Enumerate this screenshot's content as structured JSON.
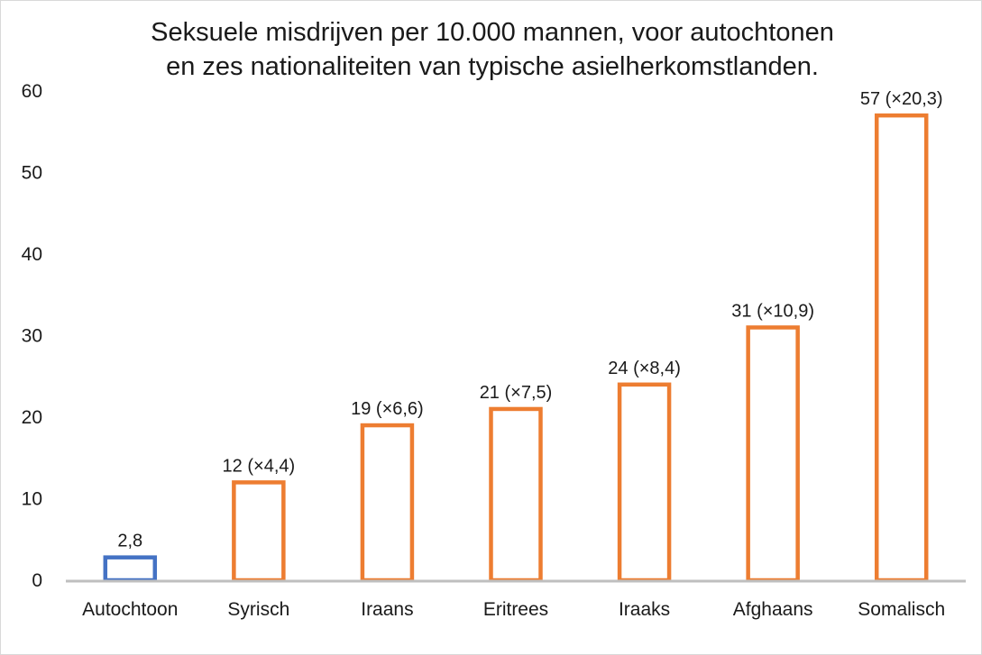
{
  "chart_data": {
    "type": "bar",
    "title": "Seksuele misdrijven per 10.000 mannen, voor autochtonen en zes nationaliteiten van typische asielherkomstlanden.",
    "categories": [
      "Autochtoon",
      "Syrisch",
      "Iraans",
      "Eritrees",
      "Iraaks",
      "Afghaans",
      "Somalisch"
    ],
    "values": [
      2.8,
      12,
      19,
      21,
      24,
      31,
      57
    ],
    "data_labels": [
      "2,8",
      "12 (×4,4)",
      "19 (×6,6)",
      "21 (×7,5)",
      "24 (×8,4)",
      "31 (×10,9)",
      "57 (×20,3)"
    ],
    "bar_colors": [
      "#4472c4",
      "#ed7d31",
      "#ed7d31",
      "#ed7d31",
      "#ed7d31",
      "#ed7d31",
      "#ed7d31"
    ],
    "ylim": [
      0,
      60
    ],
    "yticks": [
      0,
      10,
      20,
      30,
      40,
      50,
      60
    ],
    "xlabel": "",
    "ylabel": "",
    "grid": false,
    "legend": "none"
  }
}
